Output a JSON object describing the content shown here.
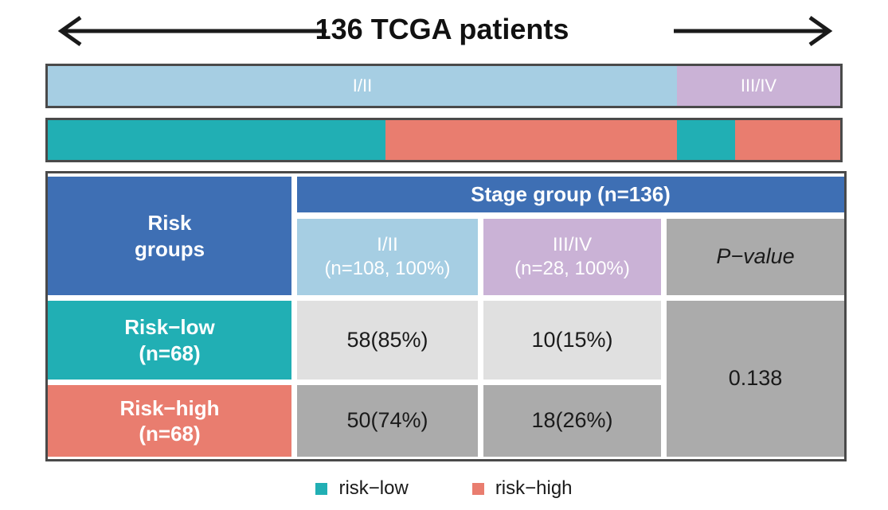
{
  "title": "136 TCGA patients",
  "colors": {
    "stage12": "#A6CEE3",
    "stage34": "#CAB2D6",
    "risk_low": "#21AFB4",
    "risk_high": "#E97D6F",
    "header_blue": "#3E6FB4",
    "cell_light_gray": "#E0E0E0",
    "cell_dark_gray": "#ABABAB",
    "border_gray": "#4A4A4A"
  },
  "stage_bar": {
    "segments": [
      {
        "label": "I/II",
        "fraction": 0.794
      },
      {
        "label": "III/IV",
        "fraction": 0.206
      }
    ]
  },
  "risk_bar": {
    "segments": [
      {
        "label": "",
        "fraction": 0.4265
      },
      {
        "label": "",
        "fraction": 0.3676
      },
      {
        "label": "",
        "fraction": 0.0735
      },
      {
        "label": "",
        "fraction": 0.1324
      }
    ]
  },
  "table": {
    "risk_groups_line1": "Risk",
    "risk_groups_line2": "groups",
    "stage_group_header": "Stage group (n=136)",
    "col_stage12_line1": "I/II",
    "col_stage12_line2": "(n=108, 100%)",
    "col_stage34_line1": "III/IV",
    "col_stage34_line2": "(n=28, 100%)",
    "col_pvalue": "P−value",
    "row_low_line1": "Risk−low",
    "row_low_line2": "(n=68)",
    "row_low_stage12": "58(85%)",
    "row_low_stage34": "10(15%)",
    "row_high_line1": "Risk−high",
    "row_high_line2": "(n=68)",
    "row_high_stage12": "50(74%)",
    "row_high_stage34": "18(26%)",
    "p_value": "0.138"
  },
  "legend": {
    "low_label": "risk−low",
    "high_label": "risk−high"
  },
  "chart_data": [
    {
      "type": "bar",
      "name": "stage-distribution-bar",
      "orientation": "horizontal-stacked",
      "title": "136 TCGA patients",
      "segments": [
        {
          "label": "I/II",
          "n": 108,
          "fraction": 0.794
        },
        {
          "label": "III/IV",
          "n": 28,
          "fraction": 0.206
        }
      ]
    },
    {
      "type": "bar",
      "name": "risk-within-stage-bar",
      "orientation": "horizontal-stacked",
      "segments": [
        {
          "label": "risk-low within I/II",
          "n": 58,
          "fraction": 0.4265
        },
        {
          "label": "risk-high within I/II",
          "n": 50,
          "fraction": 0.3676
        },
        {
          "label": "risk-low within III/IV",
          "n": 10,
          "fraction": 0.0735
        },
        {
          "label": "risk-high within III/IV",
          "n": 18,
          "fraction": 0.1324
        }
      ],
      "legend": [
        "risk−low",
        "risk−high"
      ],
      "legend_position": "bottom"
    },
    {
      "type": "table",
      "name": "contingency-table",
      "column_group_header": "Stage group (n=136)",
      "columns": [
        "Risk groups",
        "I/II (n=108, 100%)",
        "III/IV (n=28, 100%)",
        "P−value"
      ],
      "rows": [
        {
          "risk_group": "Risk−low (n=68)",
          "stage12": "58(85%)",
          "stage34": "10(15%)",
          "p_value": "0.138"
        },
        {
          "risk_group": "Risk−high (n=68)",
          "stage12": "50(74%)",
          "stage34": "18(26%)",
          "p_value": "0.138"
        }
      ],
      "p_value": 0.138
    }
  ]
}
